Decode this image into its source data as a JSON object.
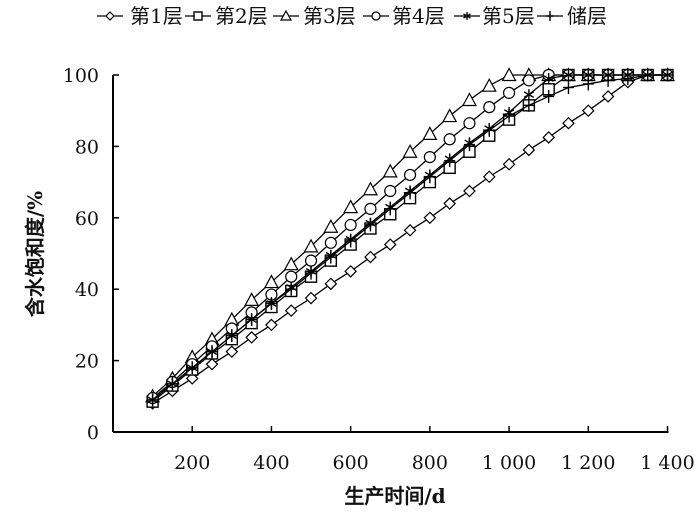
{
  "chart_data": {
    "type": "line",
    "title": "",
    "xlabel": "生产时间/d",
    "ylabel": "含水饱和度/%",
    "xlim": [
      0,
      1400
    ],
    "ylim": [
      0,
      100
    ],
    "xticks": [
      200,
      400,
      600,
      800,
      1000,
      1200,
      1400
    ],
    "xtick_labels": [
      "200",
      "400",
      "600",
      "800",
      "1 000",
      "1 200",
      "1 400"
    ],
    "yticks": [
      0,
      20,
      40,
      60,
      80,
      100
    ],
    "ytick_labels": [
      "0",
      "20",
      "40",
      "60",
      "80",
      "100"
    ],
    "grid": false,
    "legend_position": "top",
    "x": [
      100,
      150,
      200,
      250,
      300,
      350,
      400,
      450,
      500,
      550,
      600,
      650,
      700,
      750,
      800,
      850,
      900,
      950,
      1000,
      1050,
      1100,
      1150,
      1200,
      1250,
      1300,
      1350,
      1400
    ],
    "series": [
      {
        "name": "第1层",
        "marker": "diamond",
        "values": [
          8,
          11.5,
          15,
          19,
          22.5,
          26.5,
          30,
          34,
          37.5,
          41.5,
          45,
          49,
          52.5,
          56.5,
          60,
          64,
          67.5,
          71.5,
          75,
          79,
          82.5,
          86.5,
          90,
          94,
          98,
          100,
          100
        ]
      },
      {
        "name": "第2层",
        "marker": "square",
        "values": [
          8.5,
          13,
          17.5,
          22,
          26,
          30.5,
          35,
          39.5,
          43.5,
          48,
          52.5,
          57,
          61,
          65.5,
          70,
          74,
          78.5,
          83,
          87.5,
          91.5,
          96,
          100,
          100,
          100,
          100,
          100,
          100
        ]
      },
      {
        "name": "第3层",
        "marker": "triangle",
        "values": [
          10,
          15,
          21,
          26,
          31.5,
          37,
          42,
          47,
          52,
          57.5,
          63,
          68,
          73,
          78.5,
          83.5,
          88.5,
          93,
          97,
          100,
          100,
          100,
          100,
          100,
          100,
          100,
          100,
          100
        ]
      },
      {
        "name": "第4层",
        "marker": "circle",
        "values": [
          9.5,
          14,
          19,
          24,
          29,
          33.5,
          38.5,
          43.5,
          48,
          53,
          58,
          62.5,
          67.5,
          72,
          77,
          82,
          86.5,
          91,
          95,
          98.5,
          100,
          100,
          100,
          100,
          100,
          100,
          100
        ]
      },
      {
        "name": "第5层",
        "marker": "star",
        "values": [
          9,
          13.5,
          18,
          22.5,
          27,
          31.5,
          36,
          40.5,
          45,
          49.5,
          54,
          58.5,
          63,
          67.5,
          72,
          76.5,
          81,
          85,
          89.5,
          94.5,
          99,
          100,
          100,
          100,
          100,
          100,
          100
        ]
      },
      {
        "name": "储层",
        "marker": "plus",
        "values": [
          9,
          13.5,
          18,
          22.5,
          27,
          31.5,
          36,
          40,
          44.5,
          49,
          53.5,
          58,
          62.5,
          67,
          71.5,
          76,
          80.5,
          84.5,
          88.5,
          91.5,
          94,
          96.5,
          97.5,
          98.5,
          99,
          100,
          100
        ]
      }
    ]
  }
}
